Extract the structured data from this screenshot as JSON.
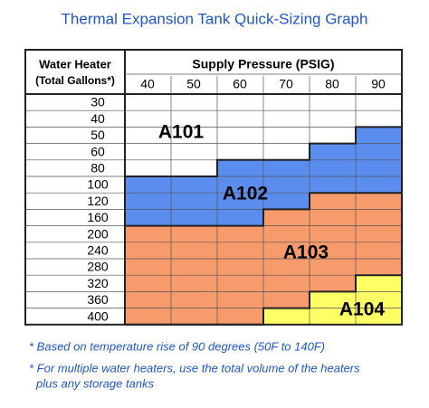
{
  "header": {
    "title": "Thermal Expansion Tank Quick-Sizing Graph"
  },
  "table": {
    "row_header": [
      "Water Heater",
      "(Total Gallons*)"
    ],
    "column_header": "Supply Pressure (PSIG)",
    "pressures": [
      "40",
      "50",
      "60",
      "70",
      "80",
      "90"
    ],
    "gallons": [
      "30",
      "40",
      "50",
      "60",
      "80",
      "100",
      "120",
      "160",
      "200",
      "240",
      "280",
      "320",
      "360",
      "400"
    ],
    "zones": [
      "A101",
      "A102",
      "A103",
      "A104"
    ]
  },
  "footnotes": [
    "* Based on temperature rise of 90 degrees (50F to 140F)",
    "* For multiple water heaters, use the total volume of the heaters",
    "plus any storage tanks"
  ]
}
